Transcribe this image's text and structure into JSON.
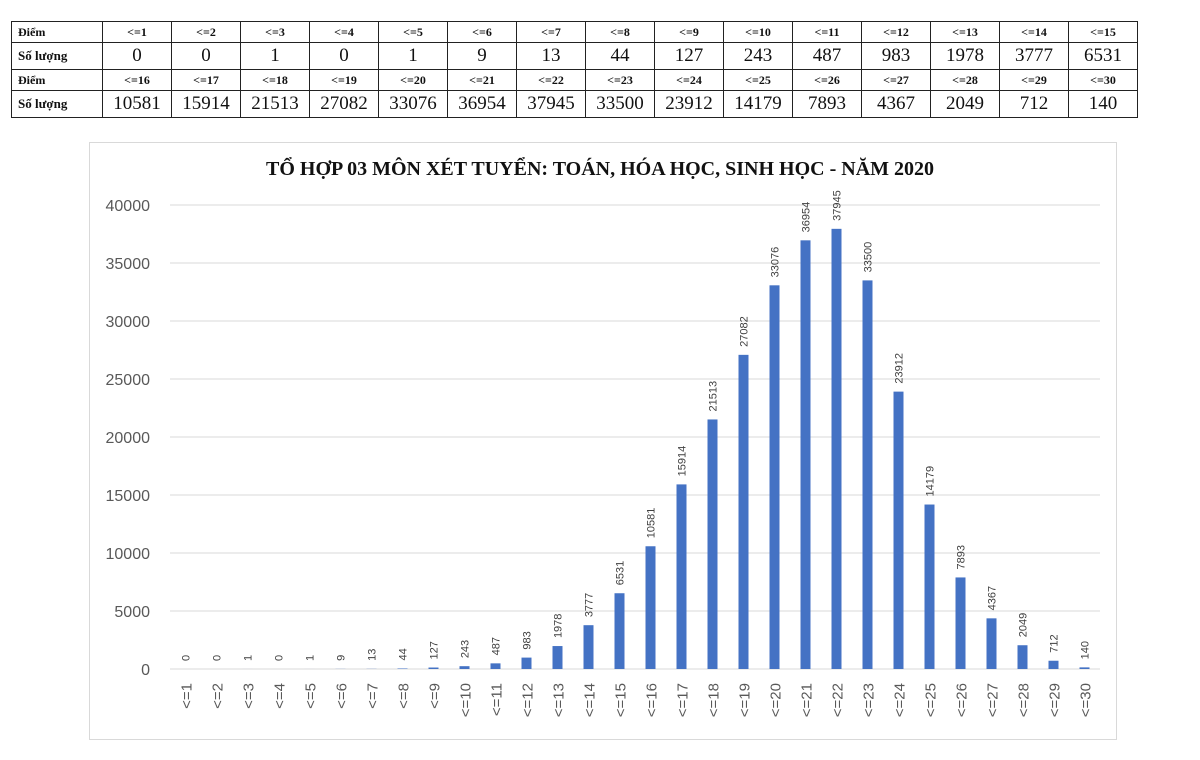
{
  "table": {
    "row_label_points": "Điểm",
    "row_label_count": "Số lượng",
    "rows": [
      {
        "points": [
          "<=1",
          "<=2",
          "<=3",
          "<=4",
          "<=5",
          "<=6",
          "<=7",
          "<=8",
          "<=9",
          "<=10",
          "<=11",
          "<=12",
          "<=13",
          "<=14",
          "<=15"
        ],
        "counts": [
          "0",
          "0",
          "1",
          "0",
          "1",
          "9",
          "13",
          "44",
          "127",
          "243",
          "487",
          "983",
          "1978",
          "3777",
          "6531"
        ]
      },
      {
        "points": [
          "<=16",
          "<=17",
          "<=18",
          "<=19",
          "<=20",
          "<=21",
          "<=22",
          "<=23",
          "<=24",
          "<=25",
          "<=26",
          "<=27",
          "<=28",
          "<=29",
          "<=30"
        ],
        "counts": [
          "10581",
          "15914",
          "21513",
          "27082",
          "33076",
          "36954",
          "37945",
          "33500",
          "23912",
          "14179",
          "7893",
          "4367",
          "2049",
          "712",
          "140"
        ]
      }
    ]
  },
  "colors": {
    "bar": "#4472c4",
    "grid": "#d9d9d9",
    "axis_text": "#595959"
  },
  "chart_data": {
    "type": "bar",
    "title": "TỔ HỢP 03 MÔN XÉT TUYỂN: TOÁN, HÓA HỌC, SINH HỌC - NĂM 2020",
    "xlabel": "",
    "ylabel": "",
    "ylim": [
      0,
      40000
    ],
    "yticks": [
      0,
      5000,
      10000,
      15000,
      20000,
      25000,
      30000,
      35000,
      40000
    ],
    "grid": true,
    "legend": null,
    "categories": [
      "<=1",
      "<=2",
      "<=3",
      "<=4",
      "<=5",
      "<=6",
      "<=7",
      "<=8",
      "<=9",
      "<=10",
      "<=11",
      "<=12",
      "<=13",
      "<=14",
      "<=15",
      "<=16",
      "<=17",
      "<=18",
      "<=19",
      "<=20",
      "<=21",
      "<=22",
      "<=23",
      "<=24",
      "<=25",
      "<=26",
      "<=27",
      "<=28",
      "<=29",
      "<=30"
    ],
    "values": [
      0,
      0,
      1,
      0,
      1,
      9,
      13,
      44,
      127,
      243,
      487,
      983,
      1978,
      3777,
      6531,
      10581,
      15914,
      21513,
      27082,
      33076,
      36954,
      37945,
      33500,
      23912,
      14179,
      7893,
      4367,
      2049,
      712,
      140
    ],
    "data_labels": true
  }
}
